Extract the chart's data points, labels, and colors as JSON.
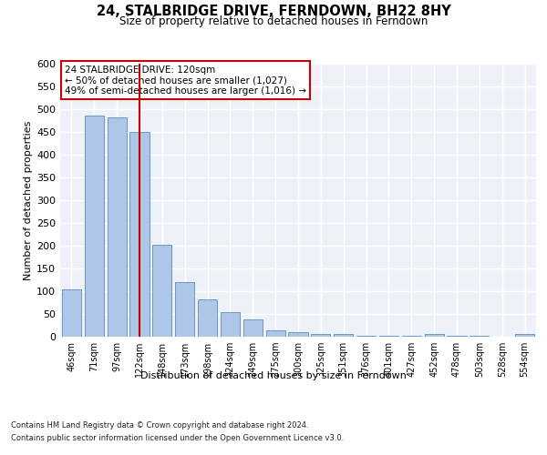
{
  "title": "24, STALBRIDGE DRIVE, FERNDOWN, BH22 8HY",
  "subtitle": "Size of property relative to detached houses in Ferndown",
  "xlabel": "Distribution of detached houses by size in Ferndown",
  "ylabel": "Number of detached properties",
  "categories": [
    "46sqm",
    "71sqm",
    "97sqm",
    "122sqm",
    "148sqm",
    "173sqm",
    "198sqm",
    "224sqm",
    "249sqm",
    "275sqm",
    "300sqm",
    "325sqm",
    "351sqm",
    "376sqm",
    "401sqm",
    "427sqm",
    "452sqm",
    "478sqm",
    "503sqm",
    "528sqm",
    "554sqm"
  ],
  "values": [
    105,
    487,
    483,
    451,
    202,
    120,
    82,
    55,
    38,
    15,
    10,
    7,
    7,
    3,
    3,
    3,
    6,
    3,
    2,
    0,
    6
  ],
  "bar_color": "#aec6e8",
  "bar_edge_color": "#5a8fc2",
  "vline_x": 3,
  "vline_color": "#cc0000",
  "annotation_text": "24 STALBRIDGE DRIVE: 120sqm\n← 50% of detached houses are smaller (1,027)\n49% of semi-detached houses are larger (1,016) →",
  "annotation_box_color": "#cc0000",
  "background_color": "#eef2f8",
  "grid_color": "#ffffff",
  "ylim": [
    0,
    600
  ],
  "yticks": [
    0,
    50,
    100,
    150,
    200,
    250,
    300,
    350,
    400,
    450,
    500,
    550,
    600
  ],
  "footer_line1": "Contains HM Land Registry data © Crown copyright and database right 2024.",
  "footer_line2": "Contains public sector information licensed under the Open Government Licence v3.0."
}
